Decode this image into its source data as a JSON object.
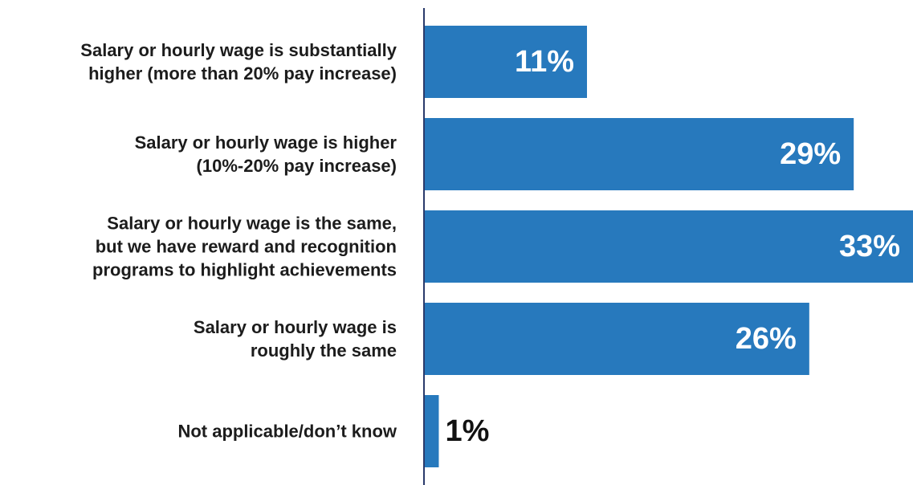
{
  "chart_data": {
    "type": "bar",
    "orientation": "horizontal",
    "title": "",
    "xlabel": "",
    "ylabel": "",
    "unit": "%",
    "categories": [
      "Salary or hourly wage is substantially higher (more than 20% pay increase)",
      "Salary or hourly wage is higher (10%-20% pay increase)",
      "Salary or hourly wage is the same, but we have reward and recognition programs to highlight achievements",
      "Salary or hourly wage is roughly the same",
      "Not applicable/don’t know"
    ],
    "category_label_lines": [
      [
        "Salary or hourly wage is substantially",
        "higher (more than 20% pay increase)"
      ],
      [
        "Salary or hourly wage is higher",
        "(10%-20% pay increase)"
      ],
      [
        "Salary or hourly wage is the same,",
        "but we have reward and recognition",
        "programs to highlight achievements"
      ],
      [
        "Salary or hourly wage is",
        "roughly the same"
      ],
      [
        "Not applicable/don’t know"
      ]
    ],
    "values": [
      11,
      29,
      33,
      26,
      1
    ],
    "value_labels": [
      "11%",
      "29%",
      "33%",
      "26%",
      "1%"
    ],
    "xlim": [
      0,
      33
    ],
    "grid": false,
    "legend": "none",
    "colors": {
      "bar": "#2779bd",
      "axis": "#2a3a6b",
      "label_inside": "#ffffff",
      "label_outside": "#111111",
      "category_text": "#1c1c1c"
    }
  }
}
